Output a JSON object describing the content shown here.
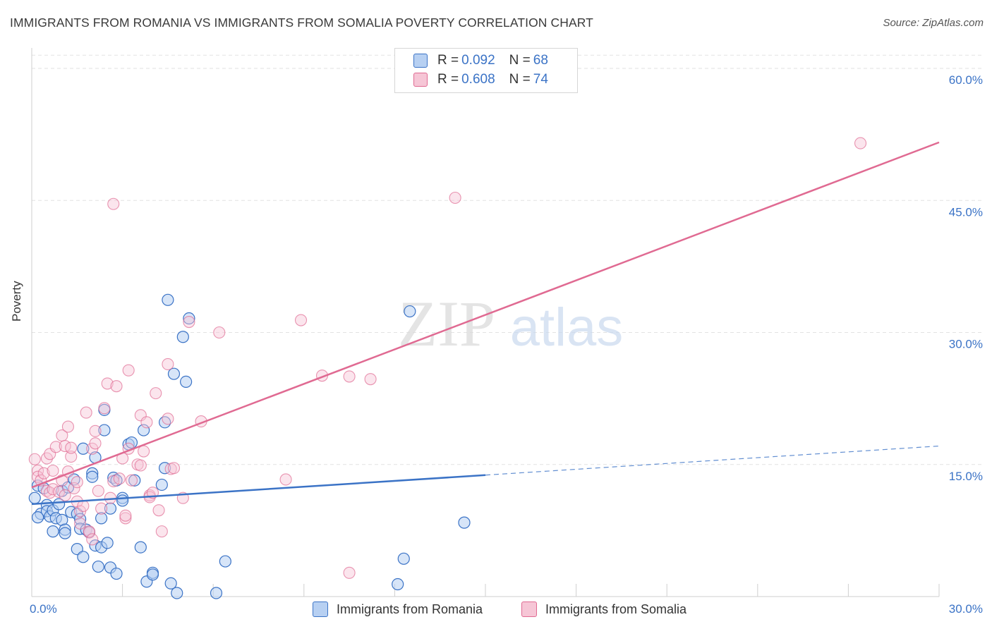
{
  "title": "IMMIGRANTS FROM ROMANIA VS IMMIGRANTS FROM SOMALIA POVERTY CORRELATION CHART",
  "source": "Source: ZipAtlas.com",
  "watermark": {
    "zip": "ZIP",
    "atlas": "atlas"
  },
  "colors": {
    "romania": "#3b73c6",
    "romania_fill": "#b7d0f2",
    "somalia": "#e06a92",
    "somalia_fill": "#f6c6d6",
    "grid": "#e2e2e2",
    "axis_text": "#3b73c6"
  },
  "legend": {
    "rows": [
      {
        "r_label": "R =",
        "r_value": "0.092",
        "n_label": "N =",
        "n_value": "68"
      },
      {
        "r_label": "R =",
        "r_value": "0.608",
        "n_label": "N =",
        "n_value": "74"
      }
    ]
  },
  "bottom_legend": [
    "Immigrants from Romania",
    "Immigrants from Somalia"
  ],
  "chart_data": {
    "type": "scatter",
    "title": "IMMIGRANTS FROM ROMANIA VS IMMIGRANTS FROM SOMALIA POVERTY CORRELATION CHART",
    "xlabel": "",
    "ylabel": "Poverty",
    "xlim": [
      0,
      30
    ],
    "ylim": [
      0,
      60
    ],
    "x_tick_labels": [
      "0.0%",
      "30.0%"
    ],
    "y_tick_labels": [
      "15.0%",
      "30.0%",
      "45.0%",
      "60.0%"
    ],
    "y_ticks": [
      15,
      30,
      45,
      60
    ],
    "x_minor_ticks": [
      0,
      3,
      6,
      9,
      12,
      15,
      18,
      21,
      24,
      27,
      30
    ],
    "grid": true,
    "legend_position": "top-center",
    "series": [
      {
        "name": "Immigrants from Romania",
        "R": 0.092,
        "N": 68,
        "trend": {
          "x0": 0,
          "y0": 10.5,
          "x1": 15,
          "y1": 13.8,
          "dashed_to": {
            "x": 30,
            "y": 17.1
          }
        },
        "points": [
          [
            0.1,
            11.2
          ],
          [
            0.2,
            12.6
          ],
          [
            0.3,
            9.4
          ],
          [
            0.4,
            12.3
          ],
          [
            0.5,
            10.4
          ],
          [
            0.5,
            9.7
          ],
          [
            0.6,
            9.1
          ],
          [
            0.7,
            9.8
          ],
          [
            0.7,
            7.4
          ],
          [
            0.8,
            8.9
          ],
          [
            0.9,
            10.5
          ],
          [
            1.0,
            8.7
          ],
          [
            1.0,
            12.0
          ],
          [
            1.1,
            7.6
          ],
          [
            1.1,
            7.2
          ],
          [
            1.2,
            12.4
          ],
          [
            1.3,
            9.6
          ],
          [
            1.4,
            13.3
          ],
          [
            1.5,
            9.4
          ],
          [
            1.5,
            5.4
          ],
          [
            1.6,
            8.8
          ],
          [
            1.6,
            7.7
          ],
          [
            1.7,
            16.8
          ],
          [
            1.7,
            4.5
          ],
          [
            1.8,
            7.6
          ],
          [
            1.9,
            7.3
          ],
          [
            2.0,
            14.0
          ],
          [
            2.0,
            13.6
          ],
          [
            2.1,
            15.8
          ],
          [
            2.1,
            5.8
          ],
          [
            2.2,
            3.4
          ],
          [
            2.3,
            8.9
          ],
          [
            2.3,
            5.6
          ],
          [
            2.4,
            21.2
          ],
          [
            2.4,
            18.9
          ],
          [
            2.5,
            6.1
          ],
          [
            2.6,
            10.0
          ],
          [
            2.6,
            3.3
          ],
          [
            2.7,
            13.5
          ],
          [
            2.8,
            13.2
          ],
          [
            2.8,
            2.6
          ],
          [
            3.0,
            11.2
          ],
          [
            3.0,
            10.9
          ],
          [
            3.2,
            17.3
          ],
          [
            3.3,
            17.5
          ],
          [
            3.4,
            13.2
          ],
          [
            3.6,
            5.6
          ],
          [
            3.7,
            18.9
          ],
          [
            3.8,
            1.7
          ],
          [
            4.0,
            2.7
          ],
          [
            4.0,
            2.5
          ],
          [
            4.3,
            12.7
          ],
          [
            4.4,
            14.6
          ],
          [
            4.4,
            19.8
          ],
          [
            4.5,
            33.7
          ],
          [
            4.6,
            1.5
          ],
          [
            4.7,
            25.3
          ],
          [
            4.8,
            0.4
          ],
          [
            5.0,
            29.5
          ],
          [
            5.1,
            24.4
          ],
          [
            5.2,
            31.6
          ],
          [
            6.1,
            0.4
          ],
          [
            6.4,
            4.0
          ],
          [
            12.1,
            1.4
          ],
          [
            12.3,
            4.3
          ],
          [
            12.5,
            32.4
          ],
          [
            14.3,
            8.4
          ],
          [
            0.2,
            9.0
          ]
        ]
      },
      {
        "name": "Immigrants from Somalia",
        "R": 0.608,
        "N": 74,
        "trend": {
          "x0": 0,
          "y0": 12.4,
          "x1": 30,
          "y1": 51.6
        },
        "points": [
          [
            0.1,
            15.6
          ],
          [
            0.2,
            14.3
          ],
          [
            0.2,
            13.6
          ],
          [
            0.3,
            13.2
          ],
          [
            0.4,
            14.0
          ],
          [
            0.5,
            12.0
          ],
          [
            0.5,
            15.7
          ],
          [
            0.6,
            16.2
          ],
          [
            0.6,
            11.8
          ],
          [
            0.7,
            14.3
          ],
          [
            0.7,
            12.2
          ],
          [
            0.8,
            17.0
          ],
          [
            0.9,
            11.9
          ],
          [
            1.0,
            13.2
          ],
          [
            1.0,
            18.3
          ],
          [
            1.1,
            17.1
          ],
          [
            1.1,
            11.5
          ],
          [
            1.2,
            19.3
          ],
          [
            1.2,
            14.2
          ],
          [
            1.3,
            15.9
          ],
          [
            1.3,
            16.9
          ],
          [
            1.4,
            12.3
          ],
          [
            1.5,
            13.0
          ],
          [
            1.5,
            10.8
          ],
          [
            1.6,
            9.7
          ],
          [
            1.6,
            8.3
          ],
          [
            1.7,
            10.3
          ],
          [
            1.8,
            20.9
          ],
          [
            1.9,
            7.3
          ],
          [
            1.9,
            7.4
          ],
          [
            2.0,
            6.5
          ],
          [
            2.0,
            16.8
          ],
          [
            2.1,
            18.8
          ],
          [
            2.1,
            17.4
          ],
          [
            2.2,
            12.0
          ],
          [
            2.3,
            10.0
          ],
          [
            2.4,
            21.4
          ],
          [
            2.5,
            24.2
          ],
          [
            2.6,
            11.2
          ],
          [
            2.7,
            13.1
          ],
          [
            2.8,
            23.9
          ],
          [
            2.9,
            13.4
          ],
          [
            3.0,
            15.7
          ],
          [
            3.1,
            8.9
          ],
          [
            3.1,
            9.2
          ],
          [
            3.2,
            16.8
          ],
          [
            3.2,
            25.7
          ],
          [
            3.3,
            13.2
          ],
          [
            3.5,
            15.0
          ],
          [
            3.6,
            14.9
          ],
          [
            3.6,
            20.6
          ],
          [
            3.7,
            16.5
          ],
          [
            3.8,
            19.8
          ],
          [
            3.9,
            11.5
          ],
          [
            3.9,
            11.3
          ],
          [
            4.0,
            11.8
          ],
          [
            4.1,
            23.1
          ],
          [
            4.2,
            9.8
          ],
          [
            4.3,
            7.4
          ],
          [
            4.5,
            20.2
          ],
          [
            4.5,
            26.4
          ],
          [
            4.6,
            14.5
          ],
          [
            4.7,
            14.6
          ],
          [
            5.0,
            11.2
          ],
          [
            5.2,
            31.2
          ],
          [
            5.6,
            19.9
          ],
          [
            6.2,
            30.0
          ],
          [
            8.4,
            13.3
          ],
          [
            8.9,
            31.4
          ],
          [
            9.6,
            25.1
          ],
          [
            10.5,
            25.0
          ],
          [
            11.2,
            24.7
          ],
          [
            14.0,
            45.3
          ],
          [
            27.4,
            51.5
          ]
        ]
      }
    ],
    "extra_somalia_points": [
      [
        2.7,
        44.6
      ],
      [
        10.5,
        2.7
      ]
    ]
  }
}
